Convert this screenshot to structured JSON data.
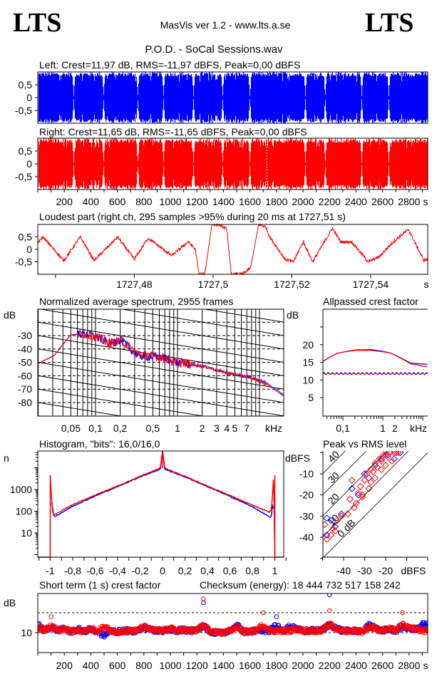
{
  "header": {
    "logo_left": "LTS",
    "logo_right": "LTS",
    "app_info": "MasVis ver 1.2 - www.lts.a.se",
    "file_title": "P.O.D. - SoCal Sessions.wav"
  },
  "colors": {
    "left": "#0000ff",
    "right": "#ff0000",
    "axis": "#000000",
    "background": "#ffffff"
  },
  "chart_data": [
    {
      "id": "left-waveform",
      "type": "area",
      "title": "Left: Crest=11,97 dB, RMS=-11,97 dBFS, Peak=0,00 dBFS",
      "yticks": [
        "0,5",
        "0",
        "-0,5"
      ],
      "ytick_values": [
        0.5,
        0,
        -0.5
      ],
      "xlim": [
        0,
        2940
      ],
      "ylim": [
        -1,
        1
      ],
      "peak": 1.0,
      "color": "#0000ff",
      "track_gaps_s": [
        269,
        494,
        752,
        946,
        1172,
        1392,
        1597,
        2016,
        2166,
        2441,
        2645
      ]
    },
    {
      "id": "right-waveform",
      "type": "area",
      "title": "Right: Crest=11,65 dB, RMS=-11,65 dBFS, Peak=0,00 dBFS",
      "yticks": [
        "0,5",
        "0",
        "-0,5"
      ],
      "ytick_values": [
        0.5,
        0,
        -0.5
      ],
      "xlim": [
        0,
        2940
      ],
      "ylim": [
        -1,
        1
      ],
      "peak": 1.0,
      "color": "#ff0000",
      "track_gaps_s": [
        269,
        494,
        752,
        946,
        1172,
        1392,
        1597,
        2016,
        2166,
        2441,
        2645
      ],
      "loudest_marker_s": 1727.51,
      "xticks": [
        "200",
        "400",
        "600",
        "800",
        "1000",
        "1200",
        "1400",
        "1600",
        "1800",
        "2000",
        "2200",
        "2400",
        "2600",
        "2800"
      ],
      "xtick_values": [
        200,
        400,
        600,
        800,
        1000,
        1200,
        1400,
        1600,
        1800,
        2000,
        2200,
        2400,
        2600,
        2800
      ],
      "xunit": "s"
    },
    {
      "id": "loudest-part",
      "type": "line",
      "title": "Loudest part (right ch, 295 samples >95% during 20 ms at 1727,51 s)",
      "xlim": [
        1727.4555,
        1727.5545
      ],
      "ylim": [
        -1,
        1
      ],
      "yticks": [
        "0,5",
        "0",
        "-0,5"
      ],
      "ytick_values": [
        0.5,
        0,
        -0.5
      ],
      "xticks": [
        "1727,48",
        "1727,5",
        "1727,52",
        "1727,54"
      ],
      "xtick_values": [
        1727.48,
        1727.5,
        1727.52,
        1727.54
      ],
      "xunit": "s",
      "series": [
        {
          "color": "#ff0000",
          "t": [
            1727.4557,
            1727.4568,
            1727.4621,
            1727.4663,
            1727.4698,
            1727.4758,
            1727.48,
            1727.4835,
            1727.4895,
            1727.4937,
            1727.4955,
            1727.4964,
            1727.4979,
            1727.4997,
            1727.5014,
            1727.5035,
            1727.5046,
            1727.5074,
            1727.5095,
            1727.5116,
            1727.5134,
            1727.5144,
            1727.5183,
            1727.5204,
            1727.5229,
            1727.5253,
            1727.5303,
            1727.5324,
            1727.5352,
            1727.5394,
            1727.5422,
            1727.5457,
            1727.5496,
            1727.5535,
            1727.5545
          ],
          "v": [
            0.3,
            0.5,
            -0.45,
            0.5,
            -0.45,
            0.5,
            -0.4,
            0.45,
            -0.25,
            0.3,
            0.0,
            -1,
            -1,
            1,
            1,
            0.8,
            -1,
            -1,
            -0.75,
            1,
            0.9,
            0.5,
            -0.4,
            -0.5,
            0.3,
            -0.5,
            0.85,
            0.3,
            0.3,
            -0.5,
            -0.3,
            0.3,
            0.8,
            -0.45,
            -0.4
          ]
        }
      ]
    },
    {
      "id": "spectrum",
      "type": "line",
      "title": "Normalized average spectrum, 2955 frames",
      "ylabel": "dB",
      "xunit": "kHz",
      "xscale": "log",
      "xlim": [
        0.02,
        20
      ],
      "ylim": [
        -90,
        -10
      ],
      "yticks": [
        "-30",
        "-40",
        "-50",
        "-60",
        "-70",
        "-80"
      ],
      "ytick_values": [
        -30,
        -40,
        -50,
        -60,
        -70,
        -80
      ],
      "xticks": [
        "0,05",
        "0,1",
        "0,2",
        "0,5",
        "1",
        "2",
        "3",
        "4",
        "5",
        "7"
      ],
      "xtick_values": [
        0.05,
        0.1,
        0.2,
        0.5,
        1,
        2,
        3,
        4,
        5,
        7
      ],
      "grid": true,
      "reference_slope": "-3 dB/octave",
      "series": [
        {
          "color": "#0000ff",
          "f": [
            0.0197,
            0.0312,
            0.041,
            0.0496,
            0.0705,
            0.1,
            0.153,
            0.2,
            0.33,
            0.62,
            0.99,
            2.08,
            4.03,
            7.5,
            11.97,
            20.6
          ],
          "db": [
            -51,
            -45,
            -36,
            -29.5,
            -28.5,
            -31,
            -36,
            -33,
            -45,
            -46,
            -50,
            -53,
            -58,
            -61,
            -65,
            -75
          ]
        },
        {
          "color": "#ff0000",
          "f": [
            0.0197,
            0.0312,
            0.041,
            0.0496,
            0.0705,
            0.1,
            0.153,
            0.2,
            0.33,
            0.62,
            0.99,
            2.08,
            4.03,
            7.5,
            11.97,
            20.6
          ],
          "db": [
            -51,
            -45,
            -36,
            -29.5,
            -28.5,
            -31,
            -36,
            -33,
            -44,
            -46,
            -50,
            -53,
            -58,
            -61,
            -66,
            -76
          ]
        }
      ]
    },
    {
      "id": "allpassed-crest",
      "type": "line",
      "title": "Allpassed crest factor",
      "ylabel": "dB",
      "xunit": "kHz",
      "xscale": "log",
      "xlim": [
        0.032,
        13
      ],
      "ylim": [
        0,
        30
      ],
      "yticks": [
        "20",
        "15",
        "10",
        "5"
      ],
      "ytick_values": [
        20,
        15,
        10,
        5
      ],
      "xticks": [
        "0,1",
        "1",
        "2"
      ],
      "xtick_values": [
        0.1,
        1,
        2
      ],
      "series": [
        {
          "color": "#0000ff",
          "f": [
            0.032,
            0.05,
            0.07,
            0.1,
            0.2,
            0.5,
            1,
            1.6,
            3,
            5,
            8,
            13
          ],
          "db": [
            15.3,
            16.6,
            17.5,
            17.9,
            18.5,
            18.6,
            18.1,
            17.6,
            16.1,
            14.8,
            14.6,
            14.5
          ],
          "reference_crest": 11.97
        },
        {
          "color": "#ff0000",
          "f": [
            0.032,
            0.05,
            0.07,
            0.1,
            0.2,
            0.5,
            1,
            1.6,
            3,
            5,
            8,
            13
          ],
          "db": [
            15.3,
            16.6,
            17.5,
            17.9,
            18.4,
            18.4,
            18.0,
            17.6,
            16.0,
            14.6,
            14.2,
            13.7
          ],
          "reference_crest": 11.65
        }
      ]
    },
    {
      "id": "histogram",
      "type": "line",
      "title": "Histogram, \"bits\": 16,0/16,0",
      "ylabel": "n",
      "yscale": "log",
      "xlim": [
        -1.1,
        1.1
      ],
      "ylim": [
        1,
        60000
      ],
      "yticks": [
        "1000",
        "100",
        "10"
      ],
      "ytick_values": [
        1000,
        100,
        10
      ],
      "xticks": [
        "-1",
        "-0,8",
        "-0,6",
        "-0,4",
        "-0,2",
        "0",
        "0,2",
        "0,4",
        "0,6",
        "0,8",
        "1"
      ],
      "xtick_values": [
        -1,
        -0.8,
        -0.6,
        -0.4,
        -0.2,
        0,
        0.2,
        0.4,
        0.6,
        0.8,
        1
      ],
      "series": [
        {
          "color": "#0000ff",
          "x": [
            -0.99,
            -0.98,
            -0.97,
            -0.95,
            -0.8,
            -0.6,
            -0.4,
            -0.2,
            -0.02,
            0,
            0.02,
            0.2,
            0.4,
            0.6,
            0.8,
            0.95,
            0.97,
            0.98,
            0.99
          ],
          "n": [
            250,
            150,
            60,
            60,
            170,
            500,
            1350,
            3800,
            8500,
            60000,
            8500,
            3800,
            1350,
            480,
            160,
            55,
            55,
            250,
            60
          ]
        },
        {
          "color": "#ff0000",
          "x": [
            -1,
            -0.99,
            -0.98,
            -0.97,
            -0.95,
            -0.8,
            -0.6,
            -0.4,
            -0.2,
            -0.02,
            0,
            0.02,
            0.2,
            0.4,
            0.6,
            0.8,
            0.95,
            0.97,
            0.98,
            0.99,
            1
          ],
          "n": [
            4500,
            500,
            100,
            70,
            75,
            200,
            550,
            1450,
            4000,
            9600,
            60000,
            9600,
            4000,
            1450,
            530,
            190,
            90,
            120,
            700,
            4500,
            1
          ]
        }
      ]
    },
    {
      "id": "peak-vs-rms",
      "type": "scatter",
      "title": "Peak vs RMS level",
      "ylabel": "dBFS",
      "xunit": "dBFS",
      "xlim": [
        -50,
        0
      ],
      "ylim": [
        -50,
        0
      ],
      "yticks": [
        "-10",
        "-20",
        "-30",
        "-40"
      ],
      "ytick_values": [
        -10,
        -20,
        -30,
        -40
      ],
      "xticks": [
        "-40",
        "-30",
        "-20"
      ],
      "xtick_values": [
        -40,
        -30,
        -20
      ],
      "crest_lines_db": [
        0,
        10,
        20,
        30,
        40
      ],
      "crest_line_labels": [
        "0 dB",
        "10",
        "20",
        "30",
        "40"
      ],
      "series": [
        {
          "color": "#0000ff",
          "rms": [
            -48,
            -46,
            -44,
            -41,
            -36,
            -33,
            -30,
            -28,
            -25,
            -22,
            -19,
            -16,
            -13,
            -48
          ],
          "peak": [
            -39,
            -32,
            -35,
            -29,
            -17,
            -20,
            -10,
            -12,
            -6,
            -3,
            -1,
            -3,
            0,
            -31
          ]
        },
        {
          "color": "#ff0000",
          "rms": [
            -48,
            -46,
            -45,
            -44,
            -43,
            -41,
            -38,
            -37,
            -35,
            -34,
            -33,
            -32,
            -31,
            -30,
            -29,
            -28,
            -27,
            -26,
            -25,
            -24,
            -23,
            -22,
            -21,
            -20,
            -19,
            -18,
            -17,
            -16,
            -15,
            -14,
            -31,
            -27,
            -25,
            -22,
            -20,
            -36,
            -49
          ],
          "peak": [
            -41,
            -39,
            -36,
            -37,
            -32,
            -30,
            -29,
            -22,
            -26,
            -24,
            -19,
            -16,
            -20,
            -13,
            -10,
            -17,
            -14,
            -9,
            -12,
            -7,
            -3,
            -8,
            -1,
            -6,
            -2,
            0,
            -4,
            0,
            0,
            0,
            -21,
            -8,
            -5,
            -4,
            -1,
            -13,
            -34
          ]
        }
      ]
    },
    {
      "id": "short-term-crest",
      "type": "scatter",
      "title": "Short term (1 s) crest factor",
      "checksum_label": "Checksum (energy):  18 444 732 517 158 242",
      "ylabel": "dB",
      "xunit": "s",
      "xlim": [
        0,
        2940
      ],
      "ylim": [
        0,
        30
      ],
      "yticks": [
        "10"
      ],
      "ytick_values": [
        10
      ],
      "dashed_lines_db": [
        10,
        20
      ],
      "xticks": [
        "200",
        "400",
        "600",
        "800",
        "1000",
        "1200",
        "1400",
        "1600",
        "1800",
        "2000",
        "2200",
        "2400",
        "2600",
        "2800"
      ],
      "xtick_values": [
        200,
        400,
        600,
        800,
        1000,
        1200,
        1400,
        1600,
        1800,
        2000,
        2200,
        2400,
        2600,
        2800
      ],
      "sample_interval_s": 50,
      "series": [
        {
          "color": "#0000ff",
          "crest_db": [
            14,
            11,
            13,
            11,
            12,
            10.5,
            12,
            10.5,
            12,
            10.5,
            8.5,
            11,
            10.5,
            11,
            10.8,
            11,
            12.5,
            11.5,
            11,
            11,
            11.5,
            11,
            11.5,
            11,
            11,
            25,
            10.5,
            10,
            10,
            11,
            14,
            10.5,
            10.5,
            11,
            11,
            11,
            18,
            11,
            13,
            12,
            11,
            11,
            11,
            11.5,
            29,
            12,
            11,
            11,
            11,
            10.5,
            14,
            12,
            11,
            12,
            11,
            13,
            12,
            12,
            14
          ]
        },
        {
          "color": "#ff0000",
          "crest_db": [
            13,
            11,
            18,
            11,
            12,
            10.5,
            11,
            10.5,
            12,
            10.5,
            13,
            11,
            10.5,
            11,
            10.8,
            11,
            13,
            11.5,
            11,
            11,
            12,
            11,
            11.5,
            11,
            11,
            27,
            10.5,
            10,
            10,
            11,
            13,
            10.5,
            10.5,
            11,
            20,
            11,
            11,
            11,
            11,
            12,
            11,
            11,
            11,
            11.5,
            21,
            12,
            11,
            11,
            11,
            10.5,
            13,
            12,
            11,
            12,
            11,
            20,
            12,
            12,
            11
          ]
        }
      ]
    }
  ]
}
